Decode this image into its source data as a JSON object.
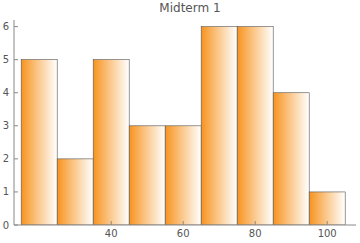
{
  "chart_data": {
    "type": "histogram",
    "title": "Midterm 1",
    "bins": [
      15,
      25,
      35,
      45,
      55,
      65,
      75,
      85,
      95,
      105
    ],
    "values": [
      5,
      2,
      5,
      3,
      3,
      6,
      6,
      4,
      1
    ],
    "color": "#f7931e",
    "xlim": [
      13,
      108
    ],
    "xticks": [
      40,
      60,
      80,
      100
    ],
    "ylim": [
      0,
      6.2
    ],
    "yticks": [
      0,
      1,
      2,
      3,
      4,
      5,
      6
    ],
    "grid": false
  }
}
